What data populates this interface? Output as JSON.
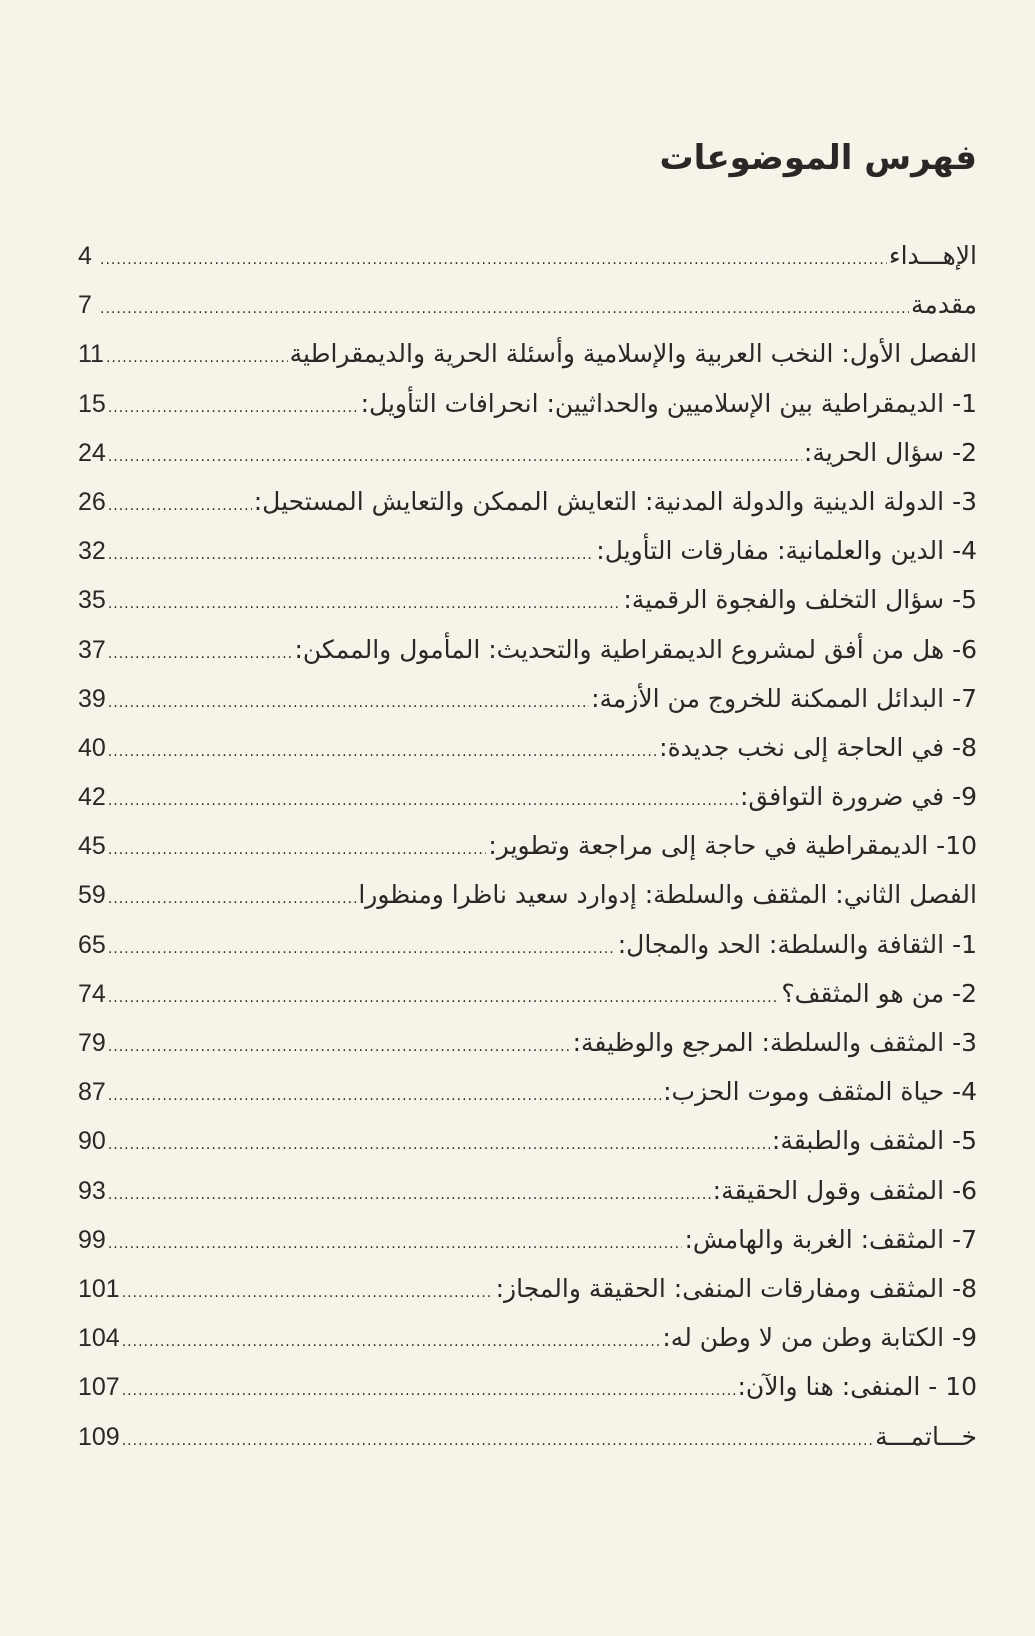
{
  "title": "فهرس الموضوعات",
  "entries": [
    {
      "text": "الإهـــداء",
      "page": "4"
    },
    {
      "text": "مقدمة",
      "page": "7"
    },
    {
      "text": "الفصل الأول: النخب العربية والإسلامية وأسئلة الحرية والديمقراطية",
      "page": "11"
    },
    {
      "text": "1- الديمقراطية بين الإسلاميين والحداثيين: انحرافات التأويل:",
      "page": "15"
    },
    {
      "text": "2- سؤال الحرية:",
      "page": "24"
    },
    {
      "text": "3- الدولة الدينية والدولة المدنية: التعايش الممكن والتعايش المستحيل:",
      "page": "26"
    },
    {
      "text": "4- الدين والعلمانية: مفارقات التأويل:",
      "page": "32"
    },
    {
      "text": "5- سؤال التخلف والفجوة الرقمية:",
      "page": "35"
    },
    {
      "text": "6- هل من أفق لمشروع الديمقراطية والتحديث: المأمول والممكن:",
      "page": "37"
    },
    {
      "text": "7- البدائل الممكنة للخروج من الأزمة:",
      "page": "39"
    },
    {
      "text": "8- في الحاجة إلى نخب جديدة:",
      "page": "40"
    },
    {
      "text": "9- في ضرورة التوافق:",
      "page": "42"
    },
    {
      "text": "10- الديمقراطية في حاجة إلى مراجعة وتطوير:",
      "page": "45"
    },
    {
      "text": "الفصل الثاني: المثقف والسلطة: إدوارد سعيد ناظرا ومنظورا",
      "page": "59"
    },
    {
      "text": "1- الثقافة والسلطة: الحد والمجال:",
      "page": "65"
    },
    {
      "text": "2- من هو المثقف؟",
      "page": "74"
    },
    {
      "text": "3- المثقف والسلطة: المرجع والوظيفة:",
      "page": "79"
    },
    {
      "text": "4- حياة المثقف وموت الحزب:",
      "page": "87"
    },
    {
      "text": "5- المثقف والطبقة:",
      "page": "90"
    },
    {
      "text": "6- المثقف وقول الحقيقة:",
      "page": "93"
    },
    {
      "text": "7- المثقف: الغربة والهامش:",
      "page": "99"
    },
    {
      "text": "8- المثقف ومفارقات المنفى: الحقيقة والمجاز:",
      "page": "101"
    },
    {
      "text": "9- الكتابة وطن من لا وطن له:",
      "page": "104"
    },
    {
      "text": "10 - المنفى: هنا والآن:",
      "page": "107"
    },
    {
      "text": "خـــاتمـــة",
      "page": "109"
    }
  ]
}
